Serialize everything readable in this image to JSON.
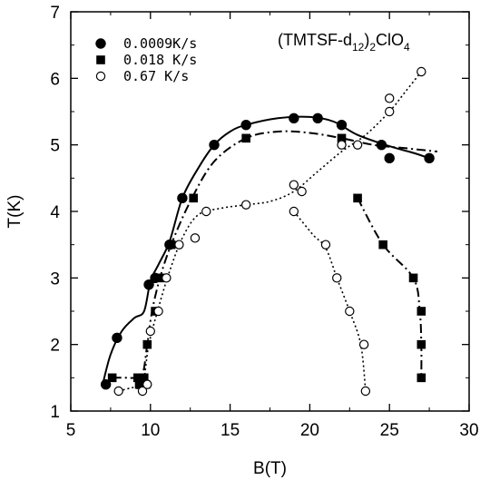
{
  "chart_data": {
    "type": "scatter",
    "title": "",
    "xlabel": "B(T)",
    "ylabel": "T(K)",
    "xlim": [
      5,
      30
    ],
    "ylim": [
      1,
      7
    ],
    "xticks": [
      "5",
      "10",
      "15",
      "20",
      "25",
      "30"
    ],
    "yticks": [
      "1",
      "2",
      "3",
      "4",
      "5",
      "6",
      "7"
    ],
    "grid": false,
    "legend_position": "top-left",
    "annotation": {
      "base": "(TMTSF-d",
      "sub1": "12",
      "mid": ")",
      "sub2": "2",
      "end": "ClO",
      "sub3": "4"
    },
    "series": [
      {
        "name": "0.0009K/s",
        "marker": "filled-circle",
        "line": "solid",
        "points": [
          [
            7.2,
            1.4
          ],
          [
            7.9,
            2.1
          ],
          [
            9.9,
            2.9
          ],
          [
            10.3,
            3.0
          ],
          [
            11.2,
            3.5
          ],
          [
            12.0,
            4.2
          ],
          [
            14.0,
            5.0
          ],
          [
            16.0,
            5.3
          ],
          [
            19.0,
            5.4
          ],
          [
            20.5,
            5.4
          ],
          [
            22.0,
            5.3
          ],
          [
            24.5,
            5.0
          ],
          [
            25.0,
            4.8
          ],
          [
            27.5,
            4.8
          ]
        ],
        "curve": [
          [
            7.0,
            1.4
          ],
          [
            7.5,
            1.85
          ],
          [
            8.2,
            2.2
          ],
          [
            9.0,
            2.4
          ],
          [
            9.6,
            2.5
          ],
          [
            10.0,
            2.95
          ],
          [
            10.5,
            3.2
          ],
          [
            11.2,
            3.55
          ],
          [
            12.0,
            4.2
          ],
          [
            13.0,
            4.65
          ],
          [
            14.0,
            5.0
          ],
          [
            15.0,
            5.2
          ],
          [
            16.0,
            5.3
          ],
          [
            18.0,
            5.4
          ],
          [
            20.0,
            5.42
          ],
          [
            21.5,
            5.35
          ],
          [
            23.0,
            5.15
          ],
          [
            25.0,
            4.98
          ],
          [
            26.5,
            4.88
          ],
          [
            27.5,
            4.8
          ]
        ]
      },
      {
        "name": "0.018 K/s",
        "marker": "filled-square",
        "line": "dash-dot",
        "points": [
          [
            7.6,
            1.5
          ],
          [
            9.2,
            1.5
          ],
          [
            9.3,
            1.4
          ],
          [
            9.6,
            1.5
          ],
          [
            9.7,
            1.4
          ],
          [
            9.8,
            2.0
          ],
          [
            10.3,
            2.5
          ],
          [
            10.6,
            3.0
          ],
          [
            11.3,
            3.5
          ],
          [
            12.7,
            4.2
          ],
          [
            16.0,
            5.1
          ],
          [
            22.0,
            5.1
          ],
          [
            23.0,
            4.2
          ],
          [
            24.6,
            3.5
          ],
          [
            26.5,
            3.0
          ],
          [
            27.0,
            2.5
          ],
          [
            27.0,
            2.0
          ],
          [
            27.0,
            1.5
          ]
        ],
        "curve_main": [
          [
            7.6,
            1.5
          ],
          [
            8.4,
            1.5
          ],
          [
            9.0,
            1.5
          ],
          [
            9.5,
            1.55
          ],
          [
            9.8,
            2.0
          ],
          [
            10.1,
            2.5
          ],
          [
            10.6,
            3.0
          ],
          [
            11.3,
            3.5
          ],
          [
            12.5,
            4.15
          ],
          [
            14.0,
            4.75
          ],
          [
            16.0,
            5.1
          ],
          [
            18.0,
            5.2
          ],
          [
            20.0,
            5.18
          ],
          [
            22.0,
            5.1
          ],
          [
            24.0,
            5.0
          ],
          [
            26.0,
            4.95
          ],
          [
            28.0,
            4.9
          ]
        ],
        "curve_branch": [
          [
            23.0,
            4.2
          ],
          [
            24.6,
            3.5
          ],
          [
            26.5,
            3.0
          ],
          [
            26.9,
            2.5
          ],
          [
            27.0,
            2.0
          ],
          [
            27.0,
            1.5
          ]
        ]
      },
      {
        "name": "0.67  K/s",
        "marker": "open-circle",
        "line": "dotted",
        "points": [
          [
            8.0,
            1.3
          ],
          [
            9.5,
            1.3
          ],
          [
            9.8,
            1.4
          ],
          [
            10.0,
            2.2
          ],
          [
            10.5,
            2.5
          ],
          [
            11.0,
            3.0
          ],
          [
            11.8,
            3.5
          ],
          [
            12.8,
            3.6
          ],
          [
            13.5,
            4.0
          ],
          [
            16.0,
            4.1
          ],
          [
            19.0,
            4.4
          ],
          [
            19.5,
            4.3
          ],
          [
            22.0,
            5.0
          ],
          [
            23.0,
            5.0
          ],
          [
            25.0,
            5.5
          ],
          [
            25.0,
            5.7
          ],
          [
            27.0,
            6.1
          ],
          [
            19.0,
            4.0
          ],
          [
            21.0,
            3.5
          ],
          [
            21.7,
            3.0
          ],
          [
            22.5,
            2.5
          ],
          [
            23.4,
            2.0
          ],
          [
            23.5,
            1.3
          ]
        ],
        "curve_main": [
          [
            8.0,
            1.3
          ],
          [
            8.8,
            1.35
          ],
          [
            9.5,
            1.4
          ],
          [
            9.9,
            2.0
          ],
          [
            10.5,
            2.55
          ],
          [
            11.2,
            3.1
          ],
          [
            12.0,
            3.6
          ],
          [
            13.0,
            3.95
          ],
          [
            14.5,
            4.05
          ],
          [
            16.0,
            4.1
          ],
          [
            17.5,
            4.15
          ],
          [
            19.0,
            4.3
          ],
          [
            20.5,
            4.6
          ],
          [
            22.0,
            4.9
          ],
          [
            23.5,
            5.15
          ],
          [
            25.0,
            5.5
          ],
          [
            26.0,
            5.8
          ],
          [
            27.0,
            6.1
          ]
        ],
        "curve_branch": [
          [
            19.0,
            4.0
          ],
          [
            20.2,
            3.65
          ],
          [
            21.0,
            3.45
          ],
          [
            21.7,
            3.0
          ],
          [
            22.5,
            2.5
          ],
          [
            23.2,
            2.0
          ],
          [
            23.5,
            1.3
          ]
        ]
      }
    ]
  }
}
